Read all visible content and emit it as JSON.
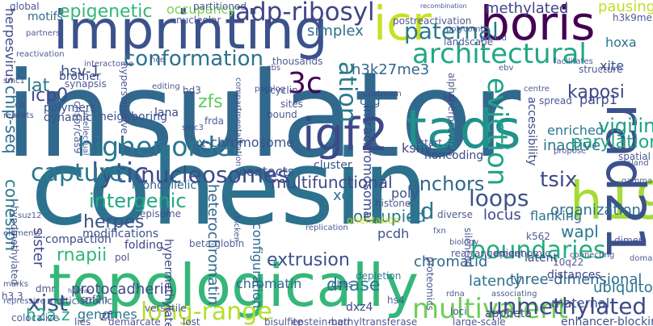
{
  "words": [
    {
      "text": "insulator",
      "color": "#31688e"
    },
    {
      "text": "cohesin",
      "color": "#2c728e"
    },
    {
      "text": "topologically",
      "color": "#35b779"
    },
    {
      "text": "imprinting",
      "color": "#3b528b"
    },
    {
      "text": "boris",
      "color": "#440154"
    },
    {
      "text": "icr",
      "color": "#c8e020"
    },
    {
      "text": "tads",
      "color": "#21918c"
    },
    {
      "text": "igf2",
      "color": "#3e4989"
    },
    {
      "text": "h19",
      "color": "#a5db36"
    },
    {
      "text": "rad21",
      "color": "#3b528b"
    },
    {
      "text": "3c",
      "color": "#440154"
    },
    {
      "text": "architectural",
      "color": "#22a884"
    },
    {
      "text": "conformation",
      "color": "#2c728e"
    },
    {
      "text": "higher-order",
      "color": "#2a788e"
    },
    {
      "text": "lytic",
      "color": "#3b528b"
    },
    {
      "text": "capture",
      "color": "#2a788e"
    },
    {
      "text": "nucleosomes",
      "color": "#3e4989"
    },
    {
      "text": "multivalent",
      "color": "#6ece58"
    },
    {
      "text": "unmethylated",
      "color": "#3e4989"
    },
    {
      "text": "boundaries",
      "color": "#27ad81"
    },
    {
      "text": "loops",
      "color": "#3b528b"
    },
    {
      "text": "eviction",
      "color": "#20a486"
    },
    {
      "text": "adp-ribosyl",
      "color": "#414487"
    },
    {
      "text": "paternal",
      "color": "#2a788e"
    },
    {
      "text": "epigenetic",
      "color": "#35b779"
    },
    {
      "text": "occupancy",
      "color": "#7ad151"
    },
    {
      "text": "methylated",
      "color": "#414487"
    },
    {
      "text": "pausing",
      "color": "#bddf26"
    },
    {
      "text": "long-range",
      "color": "#b5de2b"
    },
    {
      "text": "xist",
      "color": "#3b528b"
    },
    {
      "text": "genomes",
      "color": "#2a788e"
    },
    {
      "text": "icp0",
      "color": "#3e4989"
    },
    {
      "text": "zfs",
      "color": "#5ec962"
    },
    {
      "text": "tsix",
      "color": "#3e4989"
    },
    {
      "text": "3d",
      "color": "#2a788e"
    },
    {
      "text": "anchors",
      "color": "#31688e"
    },
    {
      "text": "vigilin",
      "color": "#1fa088"
    },
    {
      "text": "kaposi",
      "color": "#3e4989"
    },
    {
      "text": "parylation",
      "color": "#22a884"
    },
    {
      "text": "extrusion",
      "color": "#3b528b"
    },
    {
      "text": "dnase",
      "color": "#2a788e"
    },
    {
      "text": "latency",
      "color": "#2c728e"
    },
    {
      "text": "three-dimensional",
      "color": "#31688e"
    },
    {
      "text": "wapl",
      "color": "#2a788e"
    },
    {
      "text": "chromatid",
      "color": "#31688e"
    },
    {
      "text": "organization",
      "color": "#2c728e"
    },
    {
      "text": "flanking",
      "color": "#2c728e"
    },
    {
      "text": "locus",
      "color": "#3e4989"
    },
    {
      "text": "h2a.z",
      "color": "#22a884"
    },
    {
      "text": "rnapii",
      "color": "#35b779"
    },
    {
      "text": "herpes",
      "color": "#3b528b"
    },
    {
      "text": "cohesion",
      "color": "#2a788e"
    },
    {
      "text": "chip-seq",
      "color": "#2c728e"
    },
    {
      "text": "lat",
      "color": "#2a788e"
    },
    {
      "text": "intergenic",
      "color": "#22a884"
    },
    {
      "text": "heterochromatin",
      "color": "#31688e"
    },
    {
      "text": "protocadherin",
      "color": "#3e4989"
    },
    {
      "text": "chromatin",
      "color": "#31688e"
    },
    {
      "text": "configuration",
      "color": "#31688e"
    },
    {
      "text": "multifunctional",
      "color": "#3e4989"
    },
    {
      "text": "xci",
      "color": "#2c728e"
    },
    {
      "text": "occupied",
      "color": "#2a788e"
    },
    {
      "text": "pcdh",
      "color": "#3b528b"
    },
    {
      "text": "contacts",
      "color": "#3b528b"
    },
    {
      "text": "x-chromosome",
      "color": "#3b528b"
    },
    {
      "text": "cpg",
      "color": "#31688e"
    },
    {
      "text": "simplex",
      "color": "#2c728e"
    },
    {
      "text": "h3k27me3",
      "color": "#31688e"
    },
    {
      "text": "xite",
      "color": "#3b528b"
    },
    {
      "text": "hoxa",
      "color": "#2c728e"
    },
    {
      "text": "parp1",
      "color": "#3e4989"
    },
    {
      "text": "enriched",
      "color": "#2a788e"
    },
    {
      "text": "inactive",
      "color": "#2c728e"
    },
    {
      "text": "hsv-1",
      "color": "#3b528b"
    },
    {
      "text": "kshv",
      "color": "#3e4989"
    },
    {
      "text": "poly",
      "color": "#3b528b"
    },
    {
      "text": "ubiquitous",
      "color": "#2a788e"
    },
    {
      "text": "maternal",
      "color": "#3b528b"
    },
    {
      "text": "enhancer-blocking",
      "color": "#3b528b"
    },
    {
      "text": "motifs",
      "color": "#31688e"
    },
    {
      "text": "herpesvirus",
      "color": "#3e4989"
    },
    {
      "text": "cluster",
      "color": "#3b528b"
    },
    {
      "text": "intrachromosomal",
      "color": "#3e4989"
    },
    {
      "text": "accessibility",
      "color": "#3e4989"
    },
    {
      "text": "noncoding",
      "color": "#3e4989"
    },
    {
      "text": "compaction",
      "color": "#3e4989"
    },
    {
      "text": "modifications",
      "color": "#3b528b"
    },
    {
      "text": "monoallelic",
      "color": "#31688e"
    },
    {
      "text": "nucleolar",
      "color": "#3e4989"
    },
    {
      "text": "dxz4",
      "color": "#3e4989"
    },
    {
      "text": "hs4",
      "color": "#3b528b"
    },
    {
      "text": "sister",
      "color": "#3e4989"
    },
    {
      "text": "colocalize",
      "color": "#3b528b"
    },
    {
      "text": "multicistronic",
      "color": "#3b528b"
    },
    {
      "text": "demarcate",
      "color": "#414487"
    },
    {
      "text": "zf",
      "color": "#414487"
    },
    {
      "text": "lies",
      "color": "#414487"
    },
    {
      "text": "dmr",
      "color": "#414487"
    },
    {
      "text": "h3.3",
      "color": "#414487"
    },
    {
      "text": "folding",
      "color": "#414487"
    },
    {
      "text": "pol",
      "color": "#414487"
    },
    {
      "text": "episome",
      "color": "#3e4989"
    },
    {
      "text": "beta-globin",
      "color": "#3b528b"
    },
    {
      "text": "histone",
      "color": "#3e4989"
    },
    {
      "text": "depletion",
      "color": "#2c728e"
    },
    {
      "text": "cbss",
      "color": "#3b528b"
    },
    {
      "text": "rearrangement",
      "color": "#3e4989"
    },
    {
      "text": "latent",
      "color": "#3e4989"
    },
    {
      "text": "distances",
      "color": "#3e4989"
    },
    {
      "text": "k562",
      "color": "#3e4989"
    },
    {
      "text": "bisulfite",
      "color": "#3e4989"
    },
    {
      "text": "epstein-barr",
      "color": "#3e4989"
    },
    {
      "text": "methyltransferase",
      "color": "#3e4989"
    },
    {
      "text": "large-scale",
      "color": "#3e4989"
    },
    {
      "text": "appbeta",
      "color": "#3e4989"
    },
    {
      "text": "loci",
      "color": "#3e4989"
    },
    {
      "text": "rdna",
      "color": "#3e4989"
    },
    {
      "text": "lost",
      "color": "#3e4989"
    },
    {
      "text": "versatile",
      "color": "#3e4989"
    },
    {
      "text": "dynamic",
      "color": "#3b528b"
    },
    {
      "text": "polymers",
      "color": "#3b528b"
    },
    {
      "text": "neighboring",
      "color": "#3b528b"
    },
    {
      "text": "hd3",
      "color": "#3e4989"
    },
    {
      "text": "vcyclin",
      "color": "#3e4989"
    },
    {
      "text": "sites",
      "color": "#3e4989"
    },
    {
      "text": "bound",
      "color": "#3e4989"
    },
    {
      "text": "brother",
      "color": "#3e4989"
    },
    {
      "text": "reactivation",
      "color": "#3e4989"
    },
    {
      "text": "synapsis",
      "color": "#3e4989"
    },
    {
      "text": "smc1",
      "color": "#3e4989"
    },
    {
      "text": "lana",
      "color": "#3e4989"
    },
    {
      "text": "editing",
      "color": "#3e4989"
    },
    {
      "text": "thousands",
      "color": "#3e4989"
    },
    {
      "text": "cbs",
      "color": "#3e4989"
    },
    {
      "text": "upstream",
      "color": "#3e4989"
    },
    {
      "text": "alphaherpesvirus",
      "color": "#3e4989"
    },
    {
      "text": "kb",
      "color": "#3e4989"
    },
    {
      "text": "landscape",
      "color": "#3e4989"
    },
    {
      "text": "poised",
      "color": "#3e4989"
    },
    {
      "text": "polycomb",
      "color": "#3e4989"
    },
    {
      "text": "postreactivation",
      "color": "#3e4989"
    },
    {
      "text": "recombination",
      "color": "#3e4989"
    },
    {
      "text": "h3k9me3",
      "color": "#3e4989"
    },
    {
      "text": "facilitates",
      "color": "#3e4989"
    },
    {
      "text": "structure",
      "color": "#3e4989"
    },
    {
      "text": "spread",
      "color": "#3e4989"
    },
    {
      "text": "ebv",
      "color": "#3e4989"
    },
    {
      "text": "centre",
      "color": "#3e4989"
    },
    {
      "text": "spatial",
      "color": "#3e4989"
    },
    {
      "text": "island",
      "color": "#3e4989"
    },
    {
      "text": "gammaherpesviruses",
      "color": "#3e4989"
    },
    {
      "text": "domains",
      "color": "#3e4989"
    },
    {
      "text": "dimer",
      "color": "#3e4989"
    },
    {
      "text": "connecting",
      "color": "#3e4989"
    },
    {
      "text": "associating",
      "color": "#3e4989"
    },
    {
      "text": "epigenomic",
      "color": "#3e4989"
    },
    {
      "text": "10q22",
      "color": "#3e4989"
    },
    {
      "text": "silenced",
      "color": "#3e4989"
    },
    {
      "text": "proteomics",
      "color": "#3e4989"
    },
    {
      "text": "fxn",
      "color": "#3e4989"
    },
    {
      "text": "orientation",
      "color": "#c8e020"
    },
    {
      "text": "diverse",
      "color": "#3e4989"
    },
    {
      "text": "start",
      "color": "#3e4989"
    },
    {
      "text": "global",
      "color": "#3e4989"
    },
    {
      "text": "partitioned",
      "color": "#3e4989"
    },
    {
      "text": "hce",
      "color": "#3e4989"
    },
    {
      "text": "interactome",
      "color": "#3e4989"
    },
    {
      "text": "partners",
      "color": "#3e4989"
    },
    {
      "text": "hypersensitive",
      "color": "#3e4989"
    },
    {
      "text": "paralog",
      "color": "#3e4989"
    },
    {
      "text": "frda",
      "color": "#3e4989"
    },
    {
      "text": "smc3",
      "color": "#3e4989"
    },
    {
      "text": "chicken",
      "color": "#3e4989"
    },
    {
      "text": "replication",
      "color": "#3e4989"
    },
    {
      "text": "suz12",
      "color": "#3e4989"
    },
    {
      "text": "elements",
      "color": "#3e4989"
    },
    {
      "text": "marks",
      "color": "#3e4989"
    },
    {
      "text": "repressive",
      "color": "#3e4989"
    },
    {
      "text": "snf2h",
      "color": "#3e4989"
    },
    {
      "text": "h3k9ac",
      "color": "#3e4989"
    },
    {
      "text": "repeats",
      "color": "#3e4989"
    },
    {
      "text": "cis",
      "color": "#3e4989"
    },
    {
      "text": "crispr/cas9",
      "color": "#3e4989"
    },
    {
      "text": "intellectual",
      "color": "#3e4989"
    },
    {
      "text": "hypomethylated",
      "color": "#3e4989"
    },
    {
      "text": "hypermethylated",
      "color": "#3e4989"
    },
    {
      "text": "compartmentalization",
      "color": "#3e4989"
    },
    {
      "text": "propose",
      "color": "#3e4989"
    },
    {
      "text": "biology",
      "color": "#3e4989"
    },
    {
      "text": "ation",
      "color": "#2a788e"
    }
  ]
}
